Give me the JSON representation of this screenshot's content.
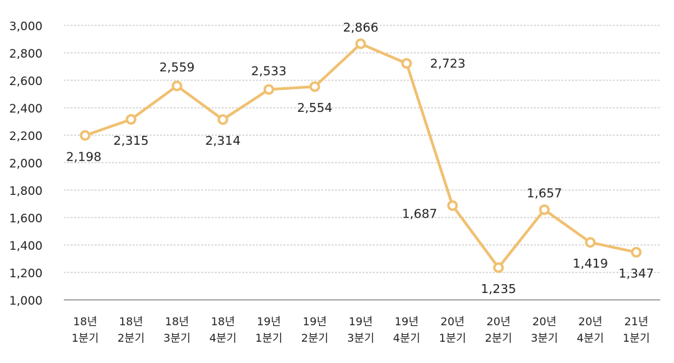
{
  "chart_data": {
    "type": "line",
    "categories": [
      [
        "18년",
        "1분기"
      ],
      [
        "18년",
        "2분기"
      ],
      [
        "18년",
        "3분기"
      ],
      [
        "18년",
        "4분기"
      ],
      [
        "19년",
        "1분기"
      ],
      [
        "19년",
        "2분기"
      ],
      [
        "19년",
        "3분기"
      ],
      [
        "19년",
        "4분기"
      ],
      [
        "20년",
        "1분기"
      ],
      [
        "20년",
        "2분기"
      ],
      [
        "20년",
        "3분기"
      ],
      [
        "20년",
        "4분기"
      ],
      [
        "21년",
        "1분기"
      ]
    ],
    "values": [
      2198,
      2315,
      2559,
      2314,
      2533,
      2554,
      2866,
      2723,
      1687,
      1235,
      1657,
      1419,
      1347
    ],
    "data_labels": [
      "2,198",
      "2,315",
      "2,559",
      "2,314",
      "2,533",
      "2,554",
      "2,866",
      "2,723",
      "1,687",
      "1,235",
      "1,657",
      "1,419",
      "1,347"
    ],
    "ylim": [
      1000,
      3000
    ],
    "yticks": [
      1000,
      1200,
      1400,
      1600,
      1800,
      2000,
      2200,
      2400,
      2600,
      2800,
      3000
    ],
    "ytick_labels": [
      "1,000",
      "1,200",
      "1,400",
      "1,600",
      "1,800",
      "2,000",
      "2,200",
      "2,400",
      "2,600",
      "2,800",
      "3,000"
    ],
    "grid": "horizontal dashed",
    "title": "",
    "xlabel": "",
    "ylabel": "",
    "colors": {
      "line": "#F0C070",
      "marker_fill": "#FFFFFF",
      "grid": "#BBBBBB",
      "axis": "#AAAAAA"
    }
  }
}
